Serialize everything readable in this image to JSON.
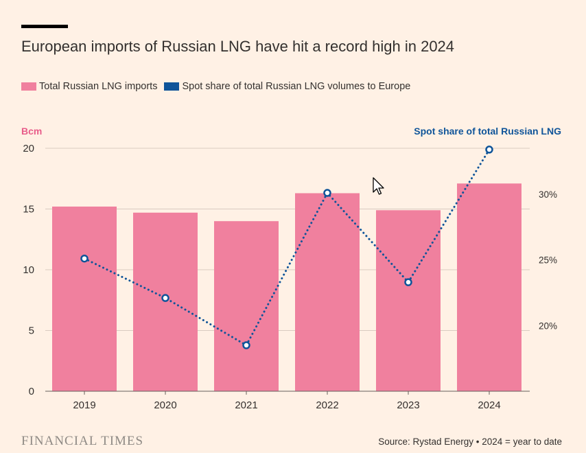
{
  "title": "European imports of Russian LNG have hit a record high in 2024",
  "source": "Source: Rystad Energy • 2024 = year to date",
  "logo_text": "FINANCIAL TIMES",
  "colors": {
    "background": "#fff1e5",
    "bar": "#f0809e",
    "line": "#0f5499",
    "left_axis_label": "#e85d8a",
    "right_axis_label": "#0f5499",
    "grid": "#d9cbc0",
    "text": "#33302e"
  },
  "chart_data": {
    "type": "bar",
    "categories": [
      "2019",
      "2020",
      "2021",
      "2022",
      "2023",
      "2024"
    ],
    "series": [
      {
        "name": "Total Russian LNG imports",
        "type": "bar",
        "axis": "left",
        "values": [
          15.2,
          14.7,
          14.0,
          16.3,
          14.9,
          17.1
        ]
      },
      {
        "name": "Spot share of total Russian LNG volumes to Europe",
        "type": "line",
        "style": "dotted",
        "axis": "right",
        "values": [
          25.1,
          22.1,
          18.5,
          30.1,
          23.3,
          33.4
        ]
      }
    ],
    "y_left": {
      "label": "Bcm",
      "range": [
        0,
        20
      ],
      "ticks": [
        0,
        5,
        10,
        15,
        20
      ]
    },
    "y_right": {
      "label": "Spot share of total Russian LNG",
      "range": [
        15,
        33.5
      ],
      "ticks": [
        20,
        25,
        30
      ],
      "tick_labels": [
        "20%",
        "25%",
        "30%"
      ]
    },
    "grid": true,
    "legend_position": "top-left"
  }
}
